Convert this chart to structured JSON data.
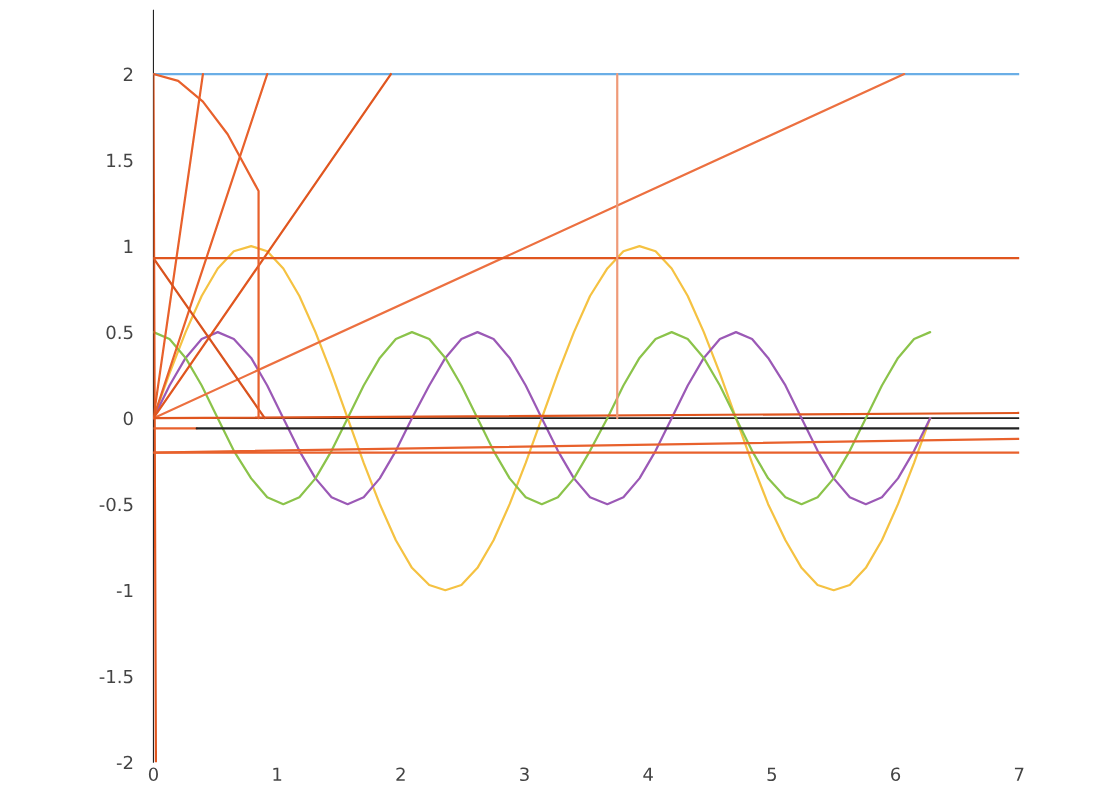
{
  "chart_data": {
    "type": "line",
    "xlim": [
      0,
      7
    ],
    "ylim": [
      -2,
      2.37
    ],
    "xticks": [
      0,
      1,
      2,
      3,
      4,
      5,
      6,
      7
    ],
    "yticks": [
      -2,
      -1.5,
      -1,
      -0.5,
      0,
      0.5,
      1,
      1.5,
      2
    ],
    "grid": false,
    "marker": "none",
    "line_style": "solid",
    "ref_lines": [
      {
        "axis": "y",
        "value": 0,
        "color": "#222222"
      }
    ],
    "series": [
      {
        "color": "#f5c242",
        "x": [
          0,
          0.13,
          0.26,
          0.39,
          0.52,
          0.65,
          0.79,
          0.92,
          1.05,
          1.18,
          1.31,
          1.44,
          1.57,
          1.7,
          1.83,
          1.96,
          2.09,
          2.23,
          2.36,
          2.49,
          2.62,
          2.75,
          2.88,
          3.01,
          3.14,
          3.27,
          3.4,
          3.53,
          3.67,
          3.8,
          3.93,
          4.06,
          4.19,
          4.32,
          4.45,
          4.58,
          4.71,
          4.84,
          4.97,
          5.11,
          5.24,
          5.37,
          5.5,
          5.63,
          5.76,
          5.89,
          6.02,
          6.15,
          6.28
        ],
        "values": [
          0,
          0.26,
          0.5,
          0.71,
          0.87,
          0.97,
          1,
          0.97,
          0.87,
          0.71,
          0.5,
          0.26,
          0,
          -0.26,
          -0.5,
          -0.71,
          -0.87,
          -0.97,
          -1,
          -0.97,
          -0.87,
          -0.71,
          -0.5,
          -0.26,
          0,
          0.26,
          0.5,
          0.71,
          0.87,
          0.97,
          1,
          0.97,
          0.87,
          0.71,
          0.5,
          0.26,
          0,
          -0.26,
          -0.5,
          -0.71,
          -0.87,
          -0.97,
          -1,
          -0.97,
          -0.87,
          -0.71,
          -0.5,
          -0.26,
          0
        ]
      },
      {
        "color": "#9b59b6",
        "x": [
          0,
          0.13,
          0.26,
          0.39,
          0.52,
          0.65,
          0.79,
          0.92,
          1.05,
          1.18,
          1.31,
          1.44,
          1.57,
          1.7,
          1.83,
          1.96,
          2.09,
          2.23,
          2.36,
          2.49,
          2.62,
          2.75,
          2.88,
          3.01,
          3.14,
          3.27,
          3.4,
          3.53,
          3.67,
          3.8,
          3.93,
          4.06,
          4.19,
          4.32,
          4.45,
          4.58,
          4.71,
          4.84,
          4.97,
          5.11,
          5.24,
          5.37,
          5.5,
          5.63,
          5.76,
          5.89,
          6.02,
          6.15,
          6.28
        ],
        "values": [
          0,
          0.19,
          0.35,
          0.46,
          0.5,
          0.46,
          0.35,
          0.19,
          0,
          -0.19,
          -0.35,
          -0.46,
          -0.5,
          -0.46,
          -0.35,
          -0.19,
          0,
          0.19,
          0.35,
          0.46,
          0.5,
          0.46,
          0.35,
          0.19,
          0,
          -0.19,
          -0.35,
          -0.46,
          -0.5,
          -0.46,
          -0.35,
          -0.19,
          0,
          0.19,
          0.35,
          0.46,
          0.5,
          0.46,
          0.35,
          0.19,
          0,
          -0.19,
          -0.35,
          -0.46,
          -0.5,
          -0.46,
          -0.35,
          -0.19,
          0
        ]
      },
      {
        "color": "#8bc34a",
        "x": [
          0,
          0.13,
          0.26,
          0.39,
          0.52,
          0.65,
          0.79,
          0.92,
          1.05,
          1.18,
          1.31,
          1.44,
          1.57,
          1.7,
          1.83,
          1.96,
          2.09,
          2.23,
          2.36,
          2.49,
          2.62,
          2.75,
          2.88,
          3.01,
          3.14,
          3.27,
          3.4,
          3.53,
          3.67,
          3.8,
          3.93,
          4.06,
          4.19,
          4.32,
          4.45,
          4.58,
          4.71,
          4.84,
          4.97,
          5.11,
          5.24,
          5.37,
          5.5,
          5.63,
          5.76,
          5.89,
          6.02,
          6.15,
          6.28
        ],
        "values": [
          0.5,
          0.46,
          0.35,
          0.19,
          0,
          -0.19,
          -0.35,
          -0.46,
          -0.5,
          -0.46,
          -0.35,
          -0.19,
          0,
          0.19,
          0.35,
          0.46,
          0.5,
          0.46,
          0.35,
          0.19,
          0,
          -0.19,
          -0.35,
          -0.46,
          -0.5,
          -0.46,
          -0.35,
          -0.19,
          0,
          0.19,
          0.35,
          0.46,
          0.5,
          0.46,
          0.35,
          0.19,
          0,
          -0.19,
          -0.35,
          -0.46,
          -0.5,
          -0.46,
          -0.35,
          -0.19,
          0,
          0.19,
          0.35,
          0.46,
          0.5
        ]
      },
      {
        "color": "#6aaee6",
        "x": [
          0,
          7
        ],
        "values": [
          2,
          2
        ]
      },
      {
        "color": "#e8612c",
        "x": [
          0,
          0.4
        ],
        "values": [
          0,
          2
        ]
      },
      {
        "color": "#e8612c",
        "x": [
          0,
          0.92
        ],
        "values": [
          0,
          2
        ]
      },
      {
        "color": "#e0561f",
        "x": [
          0,
          1.92
        ],
        "values": [
          0,
          2
        ]
      },
      {
        "color": "#ec7040",
        "x": [
          0,
          6.07
        ],
        "values": [
          0,
          2
        ]
      },
      {
        "color": "#e0561f",
        "x": [
          0,
          7
        ],
        "values": [
          0,
          0.03
        ]
      },
      {
        "color": "#e0561f",
        "x": [
          0,
          7
        ],
        "values": [
          0.93,
          0.93
        ]
      },
      {
        "color": "#d9531e",
        "x": [
          0,
          0.9
        ],
        "values": [
          0.93,
          0
        ]
      },
      {
        "color": "#e8612c",
        "x": [
          0,
          0.2,
          0.4,
          0.6,
          0.85,
          0.85
        ],
        "values": [
          2,
          1.96,
          1.84,
          1.65,
          1.32,
          0
        ]
      },
      {
        "color": "#ef9a78",
        "x": [
          3.75,
          3.75
        ],
        "values": [
          0,
          2
        ]
      },
      {
        "color": "#e0561f",
        "x": [
          0,
          0.02
        ],
        "values": [
          2,
          -2
        ]
      },
      {
        "color": "#e8612c",
        "x": [
          0,
          7
        ],
        "values": [
          -0.2,
          -0.2
        ]
      },
      {
        "color": "#e8612c",
        "x": [
          0,
          7
        ],
        "values": [
          -0.2,
          -0.12
        ]
      },
      {
        "color": "#e8612c",
        "x": [
          0,
          0.35
        ],
        "values": [
          -0.06,
          -0.06
        ]
      },
      {
        "color": "#222222",
        "x": [
          0.35,
          7
        ],
        "values": [
          -0.06,
          -0.06
        ]
      }
    ]
  }
}
